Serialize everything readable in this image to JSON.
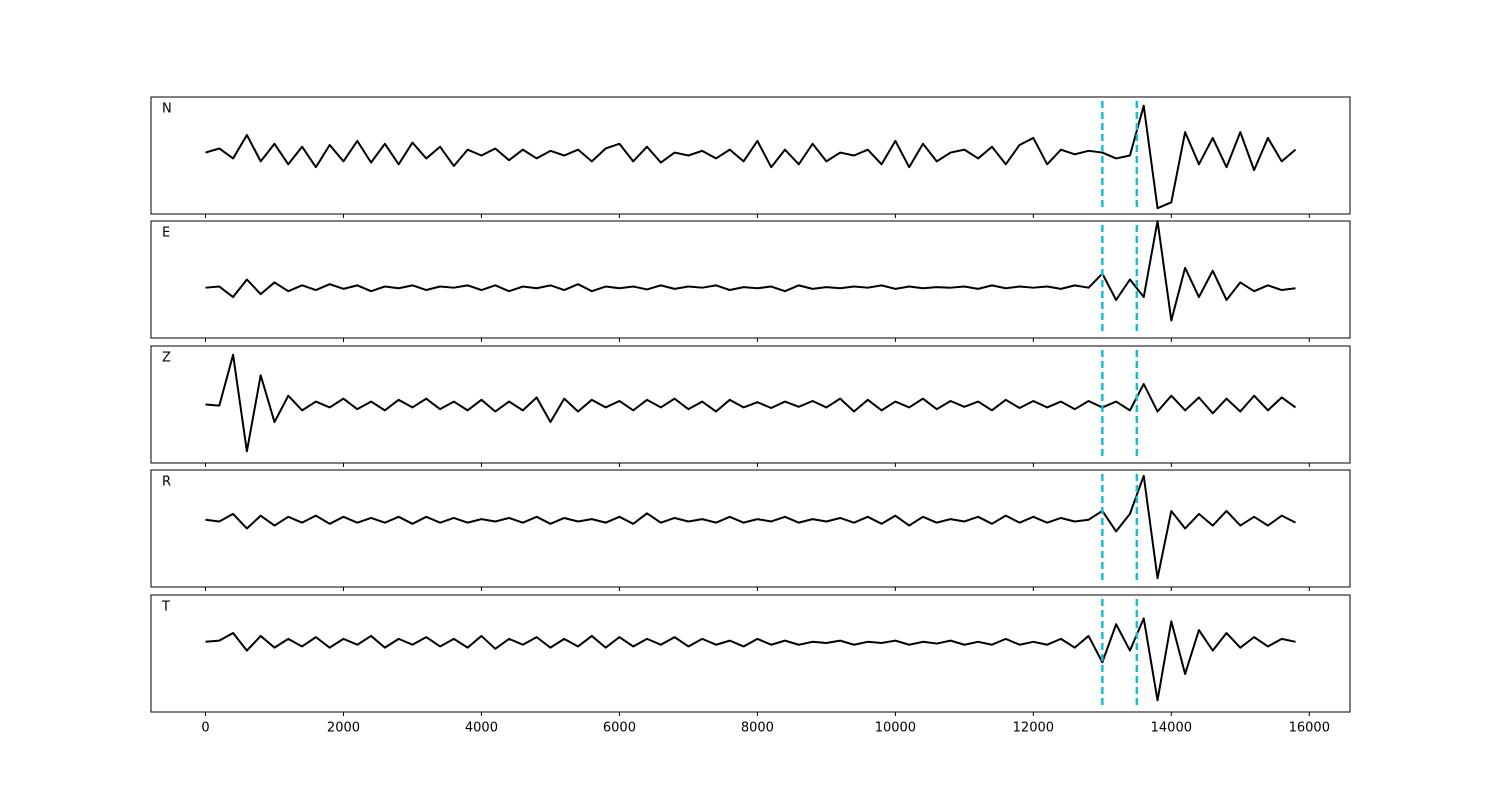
{
  "chart_data": {
    "type": "line",
    "x": [
      0,
      200,
      400,
      600,
      800,
      1000,
      1200,
      1400,
      1600,
      1800,
      2000,
      2200,
      2400,
      2600,
      2800,
      3000,
      3200,
      3400,
      3600,
      3800,
      4000,
      4200,
      4400,
      4600,
      4800,
      5000,
      5200,
      5400,
      5600,
      5800,
      6000,
      6200,
      6400,
      6600,
      6800,
      7000,
      7200,
      7400,
      7600,
      7800,
      8000,
      8200,
      8400,
      8600,
      8800,
      9000,
      9200,
      9400,
      9600,
      9800,
      10000,
      10200,
      10400,
      10600,
      10800,
      11000,
      11200,
      11400,
      11600,
      11800,
      12000,
      12200,
      12400,
      12600,
      12800,
      13000,
      13200,
      13400,
      13600,
      13800,
      14000,
      14200,
      14400,
      14600,
      14800,
      15000,
      15200,
      15400,
      15600,
      15800
    ],
    "xlim": [
      -790,
      16590
    ],
    "ylim": [
      -1,
      1
    ],
    "xticks": [
      0,
      2000,
      4000,
      6000,
      8000,
      10000,
      12000,
      14000,
      16000
    ],
    "vlines": [
      13000,
      13500
    ],
    "vline_color": "#17becf",
    "series": [
      {
        "name": "N",
        "color": "#000000",
        "values": [
          0.05,
          0.12,
          -0.05,
          0.35,
          -0.1,
          0.2,
          -0.15,
          0.15,
          -0.2,
          0.18,
          -0.1,
          0.25,
          -0.12,
          0.2,
          -0.15,
          0.22,
          -0.05,
          0.15,
          -0.18,
          0.1,
          0.0,
          0.12,
          -0.08,
          0.1,
          -0.05,
          0.08,
          0.0,
          0.1,
          -0.1,
          0.12,
          0.2,
          -0.1,
          0.15,
          -0.12,
          0.05,
          0.0,
          0.08,
          -0.05,
          0.1,
          -0.1,
          0.25,
          -0.2,
          0.1,
          -0.15,
          0.2,
          -0.1,
          0.05,
          0.0,
          0.1,
          -0.15,
          0.25,
          -0.2,
          0.2,
          -0.1,
          0.05,
          0.1,
          -0.05,
          0.15,
          -0.15,
          0.18,
          0.3,
          -0.15,
          0.1,
          0.02,
          0.08,
          0.05,
          -0.05,
          0.0,
          0.85,
          -0.9,
          -0.8,
          0.4,
          -0.15,
          0.3,
          -0.2,
          0.4,
          -0.25,
          0.3,
          -0.1,
          0.1
        ]
      },
      {
        "name": "E",
        "color": "#000000",
        "values": [
          -0.14,
          -0.12,
          -0.3,
          0.0,
          -0.25,
          -0.05,
          -0.2,
          -0.1,
          -0.18,
          -0.08,
          -0.16,
          -0.1,
          -0.2,
          -0.12,
          -0.15,
          -0.1,
          -0.18,
          -0.12,
          -0.14,
          -0.1,
          -0.18,
          -0.1,
          -0.2,
          -0.12,
          -0.15,
          -0.1,
          -0.18,
          -0.08,
          -0.2,
          -0.12,
          -0.15,
          -0.12,
          -0.17,
          -0.1,
          -0.16,
          -0.12,
          -0.14,
          -0.1,
          -0.18,
          -0.13,
          -0.15,
          -0.12,
          -0.2,
          -0.1,
          -0.16,
          -0.13,
          -0.15,
          -0.12,
          -0.14,
          -0.1,
          -0.16,
          -0.12,
          -0.15,
          -0.13,
          -0.14,
          -0.12,
          -0.16,
          -0.1,
          -0.15,
          -0.12,
          -0.14,
          -0.12,
          -0.16,
          -0.1,
          -0.14,
          0.1,
          -0.35,
          0.0,
          -0.3,
          1.0,
          -0.7,
          0.2,
          -0.3,
          0.15,
          -0.35,
          -0.05,
          -0.2,
          -0.1,
          -0.18,
          -0.15
        ]
      },
      {
        "name": "Z",
        "color": "#000000",
        "values": [
          0.0,
          -0.02,
          0.85,
          -0.8,
          0.5,
          -0.3,
          0.15,
          -0.1,
          0.05,
          -0.05,
          0.1,
          -0.08,
          0.05,
          -0.1,
          0.08,
          -0.05,
          0.1,
          -0.08,
          0.05,
          -0.1,
          0.08,
          -0.12,
          0.05,
          -0.1,
          0.12,
          -0.3,
          0.1,
          -0.12,
          0.08,
          -0.05,
          0.06,
          -0.1,
          0.08,
          -0.05,
          0.1,
          -0.08,
          0.05,
          -0.12,
          0.08,
          -0.05,
          0.04,
          -0.06,
          0.05,
          -0.04,
          0.06,
          -0.05,
          0.1,
          -0.12,
          0.08,
          -0.1,
          0.05,
          -0.05,
          0.1,
          -0.08,
          0.06,
          -0.04,
          0.05,
          -0.1,
          0.08,
          -0.06,
          0.06,
          -0.05,
          0.05,
          -0.08,
          0.06,
          -0.05,
          0.05,
          -0.1,
          0.35,
          -0.12,
          0.15,
          -0.1,
          0.12,
          -0.15,
          0.1,
          -0.12,
          0.15,
          -0.1,
          0.12,
          -0.05
        ]
      },
      {
        "name": "R",
        "color": "#000000",
        "values": [
          0.15,
          0.12,
          0.25,
          0.0,
          0.22,
          0.05,
          0.2,
          0.1,
          0.22,
          0.08,
          0.2,
          0.1,
          0.18,
          0.1,
          0.2,
          0.08,
          0.2,
          0.1,
          0.18,
          0.1,
          0.16,
          0.12,
          0.18,
          0.1,
          0.2,
          0.08,
          0.18,
          0.12,
          0.16,
          0.1,
          0.2,
          0.08,
          0.26,
          0.1,
          0.18,
          0.12,
          0.16,
          0.1,
          0.2,
          0.1,
          0.16,
          0.12,
          0.2,
          0.1,
          0.16,
          0.12,
          0.18,
          0.1,
          0.2,
          0.08,
          0.22,
          0.05,
          0.2,
          0.1,
          0.16,
          0.12,
          0.2,
          0.08,
          0.22,
          0.1,
          0.2,
          0.1,
          0.18,
          0.12,
          0.15,
          0.3,
          -0.05,
          0.25,
          0.9,
          -0.85,
          0.3,
          0.0,
          0.25,
          0.05,
          0.3,
          0.05,
          0.2,
          0.05,
          0.22,
          0.1
        ]
      },
      {
        "name": "T",
        "color": "#000000",
        "values": [
          0.2,
          0.22,
          0.35,
          0.05,
          0.3,
          0.1,
          0.25,
          0.12,
          0.28,
          0.1,
          0.25,
          0.15,
          0.3,
          0.1,
          0.25,
          0.15,
          0.28,
          0.12,
          0.25,
          0.1,
          0.3,
          0.08,
          0.25,
          0.15,
          0.28,
          0.1,
          0.25,
          0.12,
          0.3,
          0.1,
          0.28,
          0.12,
          0.25,
          0.15,
          0.28,
          0.12,
          0.25,
          0.15,
          0.22,
          0.12,
          0.25,
          0.15,
          0.22,
          0.15,
          0.2,
          0.18,
          0.22,
          0.15,
          0.2,
          0.18,
          0.22,
          0.15,
          0.2,
          0.17,
          0.22,
          0.15,
          0.2,
          0.15,
          0.25,
          0.15,
          0.2,
          0.15,
          0.25,
          0.1,
          0.3,
          -0.15,
          0.5,
          0.05,
          0.6,
          -0.8,
          0.55,
          -0.35,
          0.4,
          0.05,
          0.35,
          0.1,
          0.28,
          0.12,
          0.25,
          0.2
        ]
      }
    ]
  }
}
